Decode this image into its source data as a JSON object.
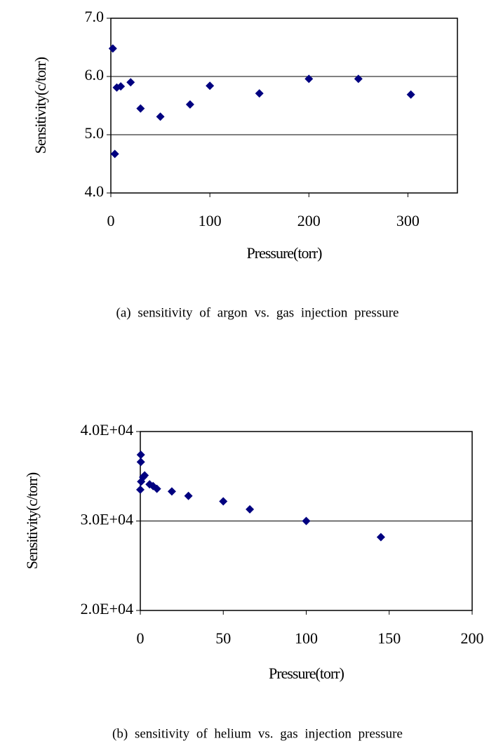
{
  "chart_data": [
    {
      "type": "scatter",
      "x_label": "Pressure(torr)",
      "y_label": "Sensitivity(c/torr)",
      "caption": "(a) sensitivity of argon vs. gas injection pressure",
      "x": [
        2,
        4,
        6,
        10,
        20,
        30,
        50,
        80,
        100,
        150,
        200,
        250,
        303
      ],
      "values": [
        6.48,
        4.67,
        5.81,
        5.83,
        5.9,
        5.45,
        5.31,
        5.52,
        5.84,
        5.71,
        5.96,
        5.96,
        5.69
      ],
      "color": "#000080",
      "xlim": [
        0,
        350
      ],
      "xticks": [
        0,
        100,
        200,
        300
      ],
      "ylim": [
        4,
        7
      ],
      "yticks": [
        {
          "value": 4,
          "label": "4.0"
        },
        {
          "value": 5,
          "label": "5.0"
        },
        {
          "value": 6,
          "label": "6.0"
        },
        {
          "value": 7,
          "label": "7.0"
        }
      ],
      "grid": true
    },
    {
      "type": "scatter",
      "x_label": "Pressure(torr)",
      "y_label": "Sensitivity(c/torr)",
      "caption": "(b) sensitivity of helium vs. gas injection pressure",
      "x": [
        0,
        0.3,
        0.3,
        0.5,
        1.7,
        2.6,
        5.6,
        7.7,
        10,
        19,
        29,
        50,
        66,
        100,
        145
      ],
      "values": [
        33500,
        37400,
        36600,
        34400,
        34900,
        35100,
        34100,
        33900,
        33600,
        33300,
        32800,
        32200,
        31300,
        30000,
        28200
      ],
      "color": "#000080",
      "xlim": [
        0,
        200
      ],
      "xticks": [
        0,
        50,
        100,
        150,
        200
      ],
      "ylim": [
        20000,
        40000
      ],
      "yticks": [
        {
          "value": 20000,
          "label": "2.0E+04"
        },
        {
          "value": 30000,
          "label": "3.0E+04"
        },
        {
          "value": 40000,
          "label": "4.0E+04"
        }
      ],
      "grid": true
    }
  ]
}
